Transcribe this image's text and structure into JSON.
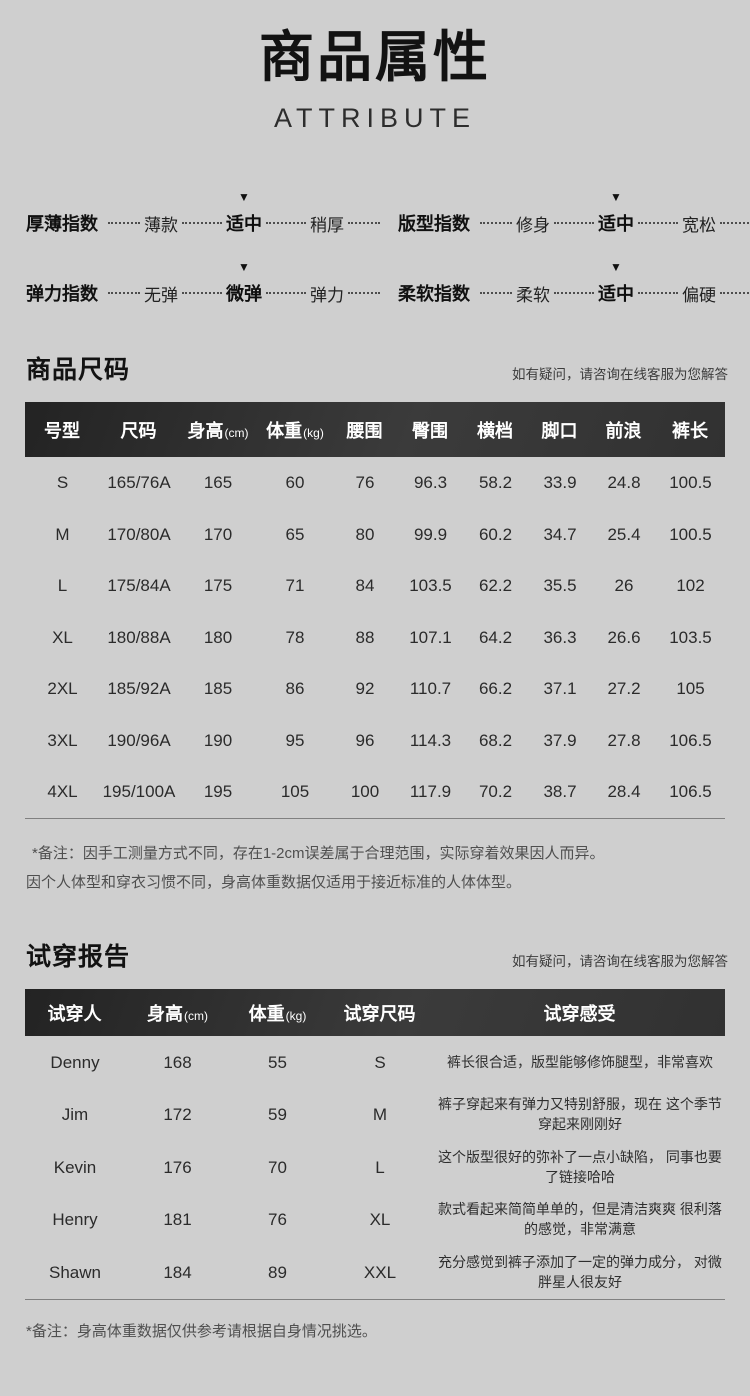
{
  "page": {
    "title": "商品属性",
    "subtitle": "ATTRIBUTE"
  },
  "icons": {
    "marker": "▼"
  },
  "indices": [
    {
      "label": "厚薄指数",
      "options": [
        "薄款",
        "适中",
        "稍厚"
      ],
      "selected": 1
    },
    {
      "label": "版型指数",
      "options": [
        "修身",
        "适中",
        "宽松"
      ],
      "selected": 1
    },
    {
      "label": "弹力指数",
      "options": [
        "无弹",
        "微弹",
        "弹力"
      ],
      "selected": 1
    },
    {
      "label": "柔软指数",
      "options": [
        "柔软",
        "适中",
        "偏硬"
      ],
      "selected": 1
    }
  ],
  "size_section": {
    "title": "商品尺码",
    "service_note": "如有疑问，请咨询在线客服为您解答",
    "headers": [
      {
        "label": "号型",
        "unit": ""
      },
      {
        "label": "尺码",
        "unit": ""
      },
      {
        "label": "身高",
        "unit": "(cm)"
      },
      {
        "label": "体重",
        "unit": "(kg)"
      },
      {
        "label": "腰围",
        "unit": ""
      },
      {
        "label": "臀围",
        "unit": ""
      },
      {
        "label": "横档",
        "unit": ""
      },
      {
        "label": "脚口",
        "unit": ""
      },
      {
        "label": "前浪",
        "unit": ""
      },
      {
        "label": "裤长",
        "unit": ""
      }
    ],
    "rows": [
      [
        "S",
        "165/76A",
        "165",
        "60",
        "76",
        "96.3",
        "58.2",
        "33.9",
        "24.8",
        "100.5"
      ],
      [
        "M",
        "170/80A",
        "170",
        "65",
        "80",
        "99.9",
        "60.2",
        "34.7",
        "25.4",
        "100.5"
      ],
      [
        "L",
        "175/84A",
        "175",
        "71",
        "84",
        "103.5",
        "62.2",
        "35.5",
        "26",
        "102"
      ],
      [
        "XL",
        "180/88A",
        "180",
        "78",
        "88",
        "107.1",
        "64.2",
        "36.3",
        "26.6",
        "103.5"
      ],
      [
        "2XL",
        "185/92A",
        "185",
        "86",
        "92",
        "110.7",
        "66.2",
        "37.1",
        "27.2",
        "105"
      ],
      [
        "3XL",
        "190/96A",
        "190",
        "95",
        "96",
        "114.3",
        "68.2",
        "37.9",
        "27.8",
        "106.5"
      ],
      [
        "4XL",
        "195/100A",
        "195",
        "105",
        "100",
        "117.9",
        "70.2",
        "38.7",
        "28.4",
        "106.5"
      ]
    ],
    "remarks": [
      "*备注：因手工测量方式不同，存在1-2cm误差属于合理范围，实际穿着效果因人而异。",
      "因个人体型和穿衣习惯不同，身高体重数据仅适用于接近标准的人体体型。"
    ]
  },
  "fit_section": {
    "title": "试穿报告",
    "service_note": "如有疑问，请咨询在线客服为您解答",
    "headers": [
      {
        "label": "试穿人",
        "unit": ""
      },
      {
        "label": "身高",
        "unit": "(cm)"
      },
      {
        "label": "体重",
        "unit": "(kg)"
      },
      {
        "label": "试穿尺码",
        "unit": ""
      },
      {
        "label": "试穿感受",
        "unit": ""
      }
    ],
    "rows": [
      [
        "Denny",
        "168",
        "55",
        "S",
        "裤长很合适，版型能够修饰腿型，非常喜欢"
      ],
      [
        "Jim",
        "172",
        "59",
        "M",
        "裤子穿起来有弹力又特别舒服，现在 这个季节穿起来刚刚好"
      ],
      [
        "Kevin",
        "176",
        "70",
        "L",
        "这个版型很好的弥补了一点小缺陷， 同事也要了链接哈哈"
      ],
      [
        "Henry",
        "181",
        "76",
        "XL",
        "款式看起来简简单单的，但是清洁爽爽 很利落的感觉，非常满意"
      ],
      [
        "Shawn",
        "184",
        "89",
        "XXL",
        "充分感觉到裤子添加了一定的弹力成分， 对微胖星人很友好"
      ]
    ],
    "remark": "*备注：身高体重数据仅供参考请根据自身情况挑选。"
  }
}
